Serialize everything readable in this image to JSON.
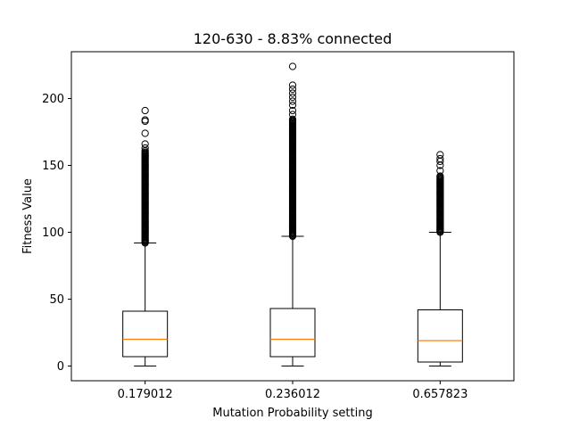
{
  "chart_data": {
    "type": "box",
    "title": "120-630 - 8.83% connected",
    "xlabel": "Mutation Probability setting",
    "ylabel": "Fitness Value",
    "ylim": [
      -11,
      235
    ],
    "yticks": [
      0,
      50,
      100,
      150,
      200
    ],
    "grid": false,
    "categories": [
      "0.179012",
      "0.236012",
      "0.657823"
    ],
    "boxes": [
      {
        "category": "0.179012",
        "whisker_low": 0,
        "q1": 7,
        "median": 20,
        "q3": 41,
        "whisker_high": 92,
        "outlier_range": [
          92,
          160
        ],
        "outliers": [
          161,
          163,
          166,
          174,
          183,
          184,
          191
        ]
      },
      {
        "category": "0.236012",
        "whisker_low": 0,
        "q1": 7,
        "median": 20,
        "q3": 43,
        "whisker_high": 97,
        "outlier_range": [
          97,
          185
        ],
        "outliers": [
          188,
          191,
          195,
          198,
          201,
          204,
          207,
          210,
          224
        ]
      },
      {
        "category": "0.657823",
        "whisker_low": 0,
        "q1": 3,
        "median": 19,
        "q3": 42,
        "whisker_high": 100,
        "outlier_range": [
          100,
          142
        ],
        "outliers": [
          146,
          150,
          153,
          155,
          158
        ]
      }
    ],
    "colors": {
      "box": "#000000",
      "median": "#ff7f0e",
      "outlier": "#000000"
    }
  }
}
